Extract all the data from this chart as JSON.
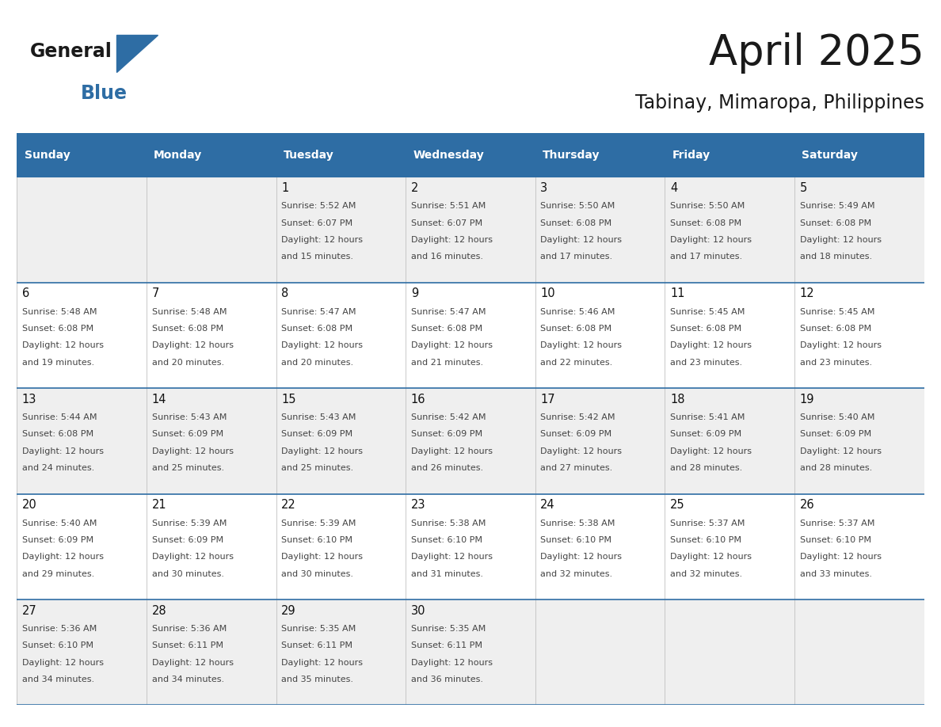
{
  "title": "April 2025",
  "subtitle": "Tabinay, Mimaropa, Philippines",
  "header_bg": "#2E6DA4",
  "header_text": "#FFFFFF",
  "day_names": [
    "Sunday",
    "Monday",
    "Tuesday",
    "Wednesday",
    "Thursday",
    "Friday",
    "Saturday"
  ],
  "cell_bg_even": "#EFEFEF",
  "cell_bg_odd": "#FFFFFF",
  "grid_line_color": "#2E6DA4",
  "text_color": "#444444",
  "logo_color": "#2E6DA4",
  "calendar": [
    [
      {
        "day": null,
        "sunrise": null,
        "sunset": null,
        "daylight": null
      },
      {
        "day": null,
        "sunrise": null,
        "sunset": null,
        "daylight": null
      },
      {
        "day": 1,
        "sunrise": "5:52 AM",
        "sunset": "6:07 PM",
        "daylight": "12 hours\nand 15 minutes."
      },
      {
        "day": 2,
        "sunrise": "5:51 AM",
        "sunset": "6:07 PM",
        "daylight": "12 hours\nand 16 minutes."
      },
      {
        "day": 3,
        "sunrise": "5:50 AM",
        "sunset": "6:08 PM",
        "daylight": "12 hours\nand 17 minutes."
      },
      {
        "day": 4,
        "sunrise": "5:50 AM",
        "sunset": "6:08 PM",
        "daylight": "12 hours\nand 17 minutes."
      },
      {
        "day": 5,
        "sunrise": "5:49 AM",
        "sunset": "6:08 PM",
        "daylight": "12 hours\nand 18 minutes."
      }
    ],
    [
      {
        "day": 6,
        "sunrise": "5:48 AM",
        "sunset": "6:08 PM",
        "daylight": "12 hours\nand 19 minutes."
      },
      {
        "day": 7,
        "sunrise": "5:48 AM",
        "sunset": "6:08 PM",
        "daylight": "12 hours\nand 20 minutes."
      },
      {
        "day": 8,
        "sunrise": "5:47 AM",
        "sunset": "6:08 PM",
        "daylight": "12 hours\nand 20 minutes."
      },
      {
        "day": 9,
        "sunrise": "5:47 AM",
        "sunset": "6:08 PM",
        "daylight": "12 hours\nand 21 minutes."
      },
      {
        "day": 10,
        "sunrise": "5:46 AM",
        "sunset": "6:08 PM",
        "daylight": "12 hours\nand 22 minutes."
      },
      {
        "day": 11,
        "sunrise": "5:45 AM",
        "sunset": "6:08 PM",
        "daylight": "12 hours\nand 23 minutes."
      },
      {
        "day": 12,
        "sunrise": "5:45 AM",
        "sunset": "6:08 PM",
        "daylight": "12 hours\nand 23 minutes."
      }
    ],
    [
      {
        "day": 13,
        "sunrise": "5:44 AM",
        "sunset": "6:08 PM",
        "daylight": "12 hours\nand 24 minutes."
      },
      {
        "day": 14,
        "sunrise": "5:43 AM",
        "sunset": "6:09 PM",
        "daylight": "12 hours\nand 25 minutes."
      },
      {
        "day": 15,
        "sunrise": "5:43 AM",
        "sunset": "6:09 PM",
        "daylight": "12 hours\nand 25 minutes."
      },
      {
        "day": 16,
        "sunrise": "5:42 AM",
        "sunset": "6:09 PM",
        "daylight": "12 hours\nand 26 minutes."
      },
      {
        "day": 17,
        "sunrise": "5:42 AM",
        "sunset": "6:09 PM",
        "daylight": "12 hours\nand 27 minutes."
      },
      {
        "day": 18,
        "sunrise": "5:41 AM",
        "sunset": "6:09 PM",
        "daylight": "12 hours\nand 28 minutes."
      },
      {
        "day": 19,
        "sunrise": "5:40 AM",
        "sunset": "6:09 PM",
        "daylight": "12 hours\nand 28 minutes."
      }
    ],
    [
      {
        "day": 20,
        "sunrise": "5:40 AM",
        "sunset": "6:09 PM",
        "daylight": "12 hours\nand 29 minutes."
      },
      {
        "day": 21,
        "sunrise": "5:39 AM",
        "sunset": "6:09 PM",
        "daylight": "12 hours\nand 30 minutes."
      },
      {
        "day": 22,
        "sunrise": "5:39 AM",
        "sunset": "6:10 PM",
        "daylight": "12 hours\nand 30 minutes."
      },
      {
        "day": 23,
        "sunrise": "5:38 AM",
        "sunset": "6:10 PM",
        "daylight": "12 hours\nand 31 minutes."
      },
      {
        "day": 24,
        "sunrise": "5:38 AM",
        "sunset": "6:10 PM",
        "daylight": "12 hours\nand 32 minutes."
      },
      {
        "day": 25,
        "sunrise": "5:37 AM",
        "sunset": "6:10 PM",
        "daylight": "12 hours\nand 32 minutes."
      },
      {
        "day": 26,
        "sunrise": "5:37 AM",
        "sunset": "6:10 PM",
        "daylight": "12 hours\nand 33 minutes."
      }
    ],
    [
      {
        "day": 27,
        "sunrise": "5:36 AM",
        "sunset": "6:10 PM",
        "daylight": "12 hours\nand 34 minutes."
      },
      {
        "day": 28,
        "sunrise": "5:36 AM",
        "sunset": "6:11 PM",
        "daylight": "12 hours\nand 34 minutes."
      },
      {
        "day": 29,
        "sunrise": "5:35 AM",
        "sunset": "6:11 PM",
        "daylight": "12 hours\nand 35 minutes."
      },
      {
        "day": 30,
        "sunrise": "5:35 AM",
        "sunset": "6:11 PM",
        "daylight": "12 hours\nand 36 minutes."
      },
      {
        "day": null,
        "sunrise": null,
        "sunset": null,
        "daylight": null
      },
      {
        "day": null,
        "sunrise": null,
        "sunset": null,
        "daylight": null
      },
      {
        "day": null,
        "sunrise": null,
        "sunset": null,
        "daylight": null
      }
    ]
  ]
}
